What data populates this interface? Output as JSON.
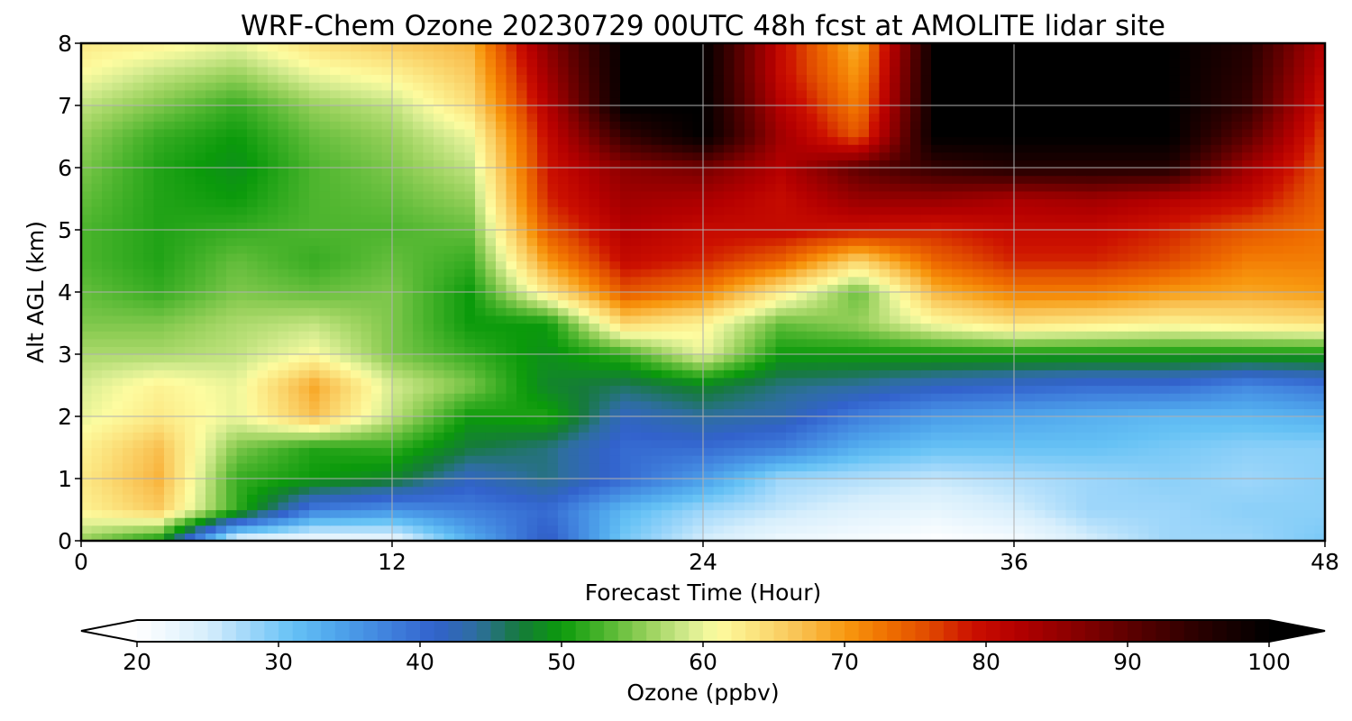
{
  "chart_data": {
    "type": "heatmap",
    "title": "WRF-Chem Ozone  20230729 00UTC 48h fcst at AMOLITE lidar site",
    "xlabel": "Forecast Time (Hour)",
    "ylabel": "Alt AGL (km)",
    "xlim": [
      0,
      48
    ],
    "ylim": [
      0,
      8
    ],
    "x_ticks": [
      "0",
      "12",
      "24",
      "36",
      "48"
    ],
    "y_ticks": [
      "0",
      "1",
      "2",
      "3",
      "4",
      "5",
      "6",
      "7",
      "8"
    ],
    "grid": true,
    "colorbar": {
      "label": "Ozone  (ppbv)",
      "orientation": "horizontal",
      "placement": "bottom",
      "range": [
        20,
        100
      ],
      "extend": "both",
      "ticks": [
        "20",
        "30",
        "40",
        "50",
        "60",
        "70",
        "80",
        "90",
        "100"
      ]
    },
    "x": [
      0,
      3,
      6,
      9,
      12,
      15,
      18,
      21,
      24,
      27,
      30,
      33,
      36,
      39,
      42,
      45,
      48
    ],
    "y": [
      0,
      0.5,
      1,
      1.5,
      2,
      2.5,
      3,
      3.5,
      4,
      4.5,
      5,
      5.5,
      6,
      6.5,
      7,
      7.5,
      8
    ],
    "z": [
      [
        56,
        50,
        22,
        21,
        22,
        33,
        42,
        30,
        25,
        22,
        21,
        20,
        21,
        25,
        28,
        28,
        30
      ],
      [
        62,
        66,
        52,
        38,
        36,
        38,
        40,
        32,
        28,
        26,
        24,
        23,
        25,
        28,
        28,
        29,
        29
      ],
      [
        63,
        68,
        52,
        50,
        48,
        42,
        45,
        40,
        35,
        28,
        27,
        26,
        27,
        28,
        29,
        28,
        29
      ],
      [
        62,
        67,
        55,
        51,
        52,
        47,
        45,
        40,
        40,
        38,
        33,
        31,
        31,
        31,
        30,
        29,
        29
      ],
      [
        60,
        63,
        60,
        67,
        58,
        50,
        51,
        42,
        44,
        43,
        38,
        35,
        34,
        33,
        32,
        32,
        33
      ],
      [
        59,
        62,
        60,
        69,
        59,
        55,
        48,
        46,
        48,
        45,
        44,
        42,
        41,
        40,
        40,
        37,
        39
      ],
      [
        57,
        57,
        58,
        61,
        55,
        52,
        49,
        52,
        60,
        50,
        50,
        50,
        50,
        50,
        50,
        50,
        50
      ],
      [
        55,
        55,
        57,
        58,
        55,
        50,
        50,
        65,
        62,
        54,
        56,
        61,
        64,
        63,
        62,
        63,
        64
      ],
      [
        54,
        52,
        55,
        54,
        55,
        50,
        63,
        75,
        72,
        63,
        54,
        68,
        72,
        72,
        70,
        69,
        70
      ],
      [
        53,
        51,
        54,
        52,
        54,
        52,
        70,
        80,
        78,
        74,
        65,
        74,
        78,
        78,
        76,
        72,
        72
      ],
      [
        53,
        51,
        52,
        53,
        53,
        54,
        75,
        82,
        80,
        80,
        79,
        78,
        80,
        80,
        78,
        75,
        73
      ],
      [
        54,
        51,
        50,
        53,
        54,
        56,
        78,
        84,
        83,
        80,
        85,
        85,
        83,
        84,
        82,
        80,
        74
      ],
      [
        55,
        51,
        49,
        53,
        55,
        58,
        79,
        86,
        88,
        82,
        90,
        94,
        96,
        96,
        96,
        84,
        75
      ],
      [
        56,
        52,
        50,
        54,
        56,
        60,
        80,
        94,
        100,
        84,
        75,
        100,
        100,
        100,
        100,
        90,
        76
      ],
      [
        58,
        55,
        52,
        56,
        58,
        64,
        82,
        100,
        100,
        82,
        72,
        100,
        100,
        100,
        100,
        94,
        78
      ],
      [
        61,
        58,
        56,
        60,
        62,
        66,
        84,
        100,
        100,
        80,
        70,
        100,
        100,
        100,
        100,
        95,
        80
      ],
      [
        63,
        62,
        60,
        64,
        66,
        68,
        86,
        100,
        100,
        80,
        68,
        100,
        100,
        100,
        100,
        96,
        82
      ]
    ]
  }
}
